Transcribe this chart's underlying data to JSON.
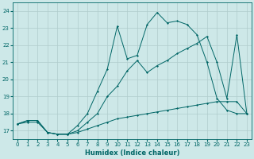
{
  "xlabel": "Humidex (Indice chaleur)",
  "bg_color": "#cde8e8",
  "grid_color": "#b0cccc",
  "line_color": "#006666",
  "xlim": [
    -0.5,
    23.5
  ],
  "ylim": [
    16.5,
    24.5
  ],
  "yticks": [
    17,
    18,
    19,
    20,
    21,
    22,
    23,
    24
  ],
  "xticks": [
    0,
    1,
    2,
    3,
    4,
    5,
    6,
    7,
    8,
    9,
    10,
    11,
    12,
    13,
    14,
    15,
    16,
    17,
    18,
    19,
    20,
    21,
    22,
    23
  ],
  "line_top_x": [
    0,
    1,
    2,
    3,
    4,
    5,
    6,
    7,
    8,
    9,
    10,
    11,
    12,
    13,
    14,
    15,
    16,
    17,
    18,
    19,
    20,
    21,
    22,
    23
  ],
  "line_top_y": [
    17.4,
    17.6,
    17.6,
    16.9,
    16.8,
    16.8,
    17.3,
    18.0,
    19.3,
    20.6,
    23.1,
    21.2,
    21.4,
    23.2,
    23.9,
    23.3,
    23.4,
    23.2,
    22.6,
    21.0,
    18.9,
    18.2,
    18.0,
    18.0
  ],
  "line_mid_x": [
    0,
    1,
    2,
    3,
    4,
    5,
    6,
    7,
    8,
    9,
    10,
    11,
    12,
    13,
    14,
    15,
    16,
    17,
    18,
    19,
    20,
    21,
    22,
    23
  ],
  "line_mid_y": [
    17.4,
    17.6,
    17.6,
    16.9,
    16.8,
    16.8,
    17.0,
    17.5,
    18.0,
    19.0,
    19.6,
    20.5,
    21.1,
    20.4,
    20.8,
    21.1,
    21.5,
    21.8,
    22.1,
    22.5,
    21.0,
    18.9,
    22.6,
    18.0
  ],
  "line_bot_x": [
    0,
    1,
    2,
    3,
    4,
    5,
    6,
    7,
    8,
    9,
    10,
    11,
    12,
    13,
    14,
    15,
    16,
    17,
    18,
    19,
    20,
    21,
    22,
    23
  ],
  "line_bot_y": [
    17.4,
    17.5,
    17.5,
    16.9,
    16.8,
    16.8,
    16.9,
    17.1,
    17.3,
    17.5,
    17.7,
    17.8,
    17.9,
    18.0,
    18.1,
    18.2,
    18.3,
    18.4,
    18.5,
    18.6,
    18.7,
    18.7,
    18.7,
    18.0
  ]
}
